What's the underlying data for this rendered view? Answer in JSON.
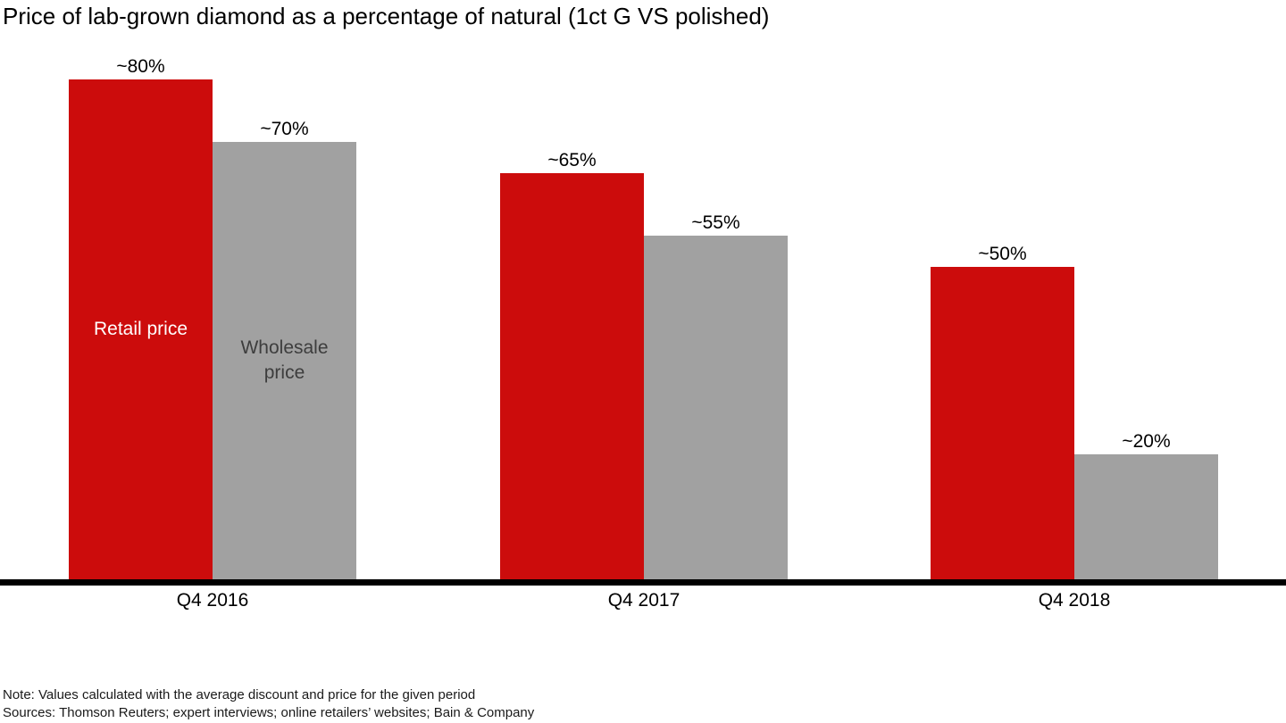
{
  "title": "Price of lab-grown diamond as a percentage of natural (1ct G VS polished)",
  "chart_data": {
    "type": "bar",
    "title": "Price of lab-grown diamond as a percentage of natural (1ct G VS polished)",
    "categories": [
      "Q4 2016",
      "Q4 2017",
      "Q4 2018"
    ],
    "series": [
      {
        "name": "Retail price",
        "in_bar_label": "Retail price",
        "color": "#cc0c0c",
        "label_color": "#ffffff",
        "values": [
          80,
          65,
          50
        ],
        "value_labels": [
          "~80%",
          "~65%",
          "~50%"
        ]
      },
      {
        "name": "Wholesale price",
        "in_bar_label": "Wholesale\nprice",
        "color": "#a1a1a1",
        "label_color": "#3d3d3d",
        "values": [
          70,
          55,
          20
        ],
        "value_labels": [
          "~70%",
          "~55%",
          "~20%"
        ]
      }
    ],
    "unit": "%",
    "ylim": [
      0,
      100
    ],
    "grid": false,
    "axis_color": "#000000",
    "legend_position": "inside-first-group-bars"
  },
  "footer": {
    "note": "Note: Values calculated with the average discount and price for the given period",
    "sources": "Sources: Thomson Reuters; expert interviews; online retailers’ websites; Bain & Company"
  }
}
